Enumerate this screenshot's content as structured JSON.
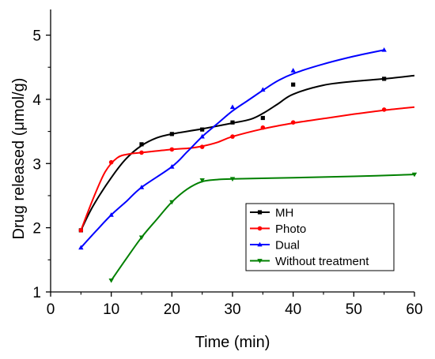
{
  "chart_data": {
    "type": "line",
    "title": "",
    "xlabel": "Time (min)",
    "ylabel": "Drug released (μmol/g)",
    "xlim": [
      0,
      60
    ],
    "ylim": [
      1,
      5.4
    ],
    "x_ticks": [
      0,
      10,
      20,
      30,
      40,
      50,
      60
    ],
    "y_ticks": [
      1,
      2,
      3,
      4,
      5
    ],
    "grid": false,
    "legend_position": "lower-right",
    "series": [
      {
        "name": "MH",
        "color": "#000000",
        "marker": "square",
        "points": [
          [
            5,
            1.96
          ],
          [
            15,
            3.3
          ],
          [
            20,
            3.46
          ],
          [
            25,
            3.53
          ],
          [
            30,
            3.64
          ],
          [
            35,
            3.71
          ],
          [
            40,
            4.23
          ],
          [
            55,
            4.32
          ]
        ],
        "fit": [
          [
            5,
            1.96
          ],
          [
            7,
            2.34
          ],
          [
            10,
            2.78
          ],
          [
            12.5,
            3.08
          ],
          [
            15,
            3.28
          ],
          [
            17.5,
            3.4
          ],
          [
            20,
            3.46
          ],
          [
            25,
            3.54
          ],
          [
            30,
            3.63
          ],
          [
            33,
            3.69
          ],
          [
            35,
            3.78
          ],
          [
            37.5,
            3.93
          ],
          [
            40,
            4.08
          ],
          [
            45,
            4.22
          ],
          [
            50,
            4.28
          ],
          [
            55,
            4.32
          ],
          [
            60,
            4.37
          ]
        ]
      },
      {
        "name": "Photo",
        "color": "#ff0000",
        "marker": "circle",
        "points": [
          [
            5,
            1.96
          ],
          [
            10,
            3.02
          ],
          [
            15,
            3.17
          ],
          [
            20,
            3.22
          ],
          [
            25,
            3.26
          ],
          [
            30,
            3.42
          ],
          [
            35,
            3.56
          ],
          [
            40,
            3.64
          ],
          [
            55,
            3.84
          ]
        ],
        "fit": [
          [
            5,
            1.96
          ],
          [
            7,
            2.45
          ],
          [
            9,
            2.87
          ],
          [
            11,
            3.09
          ],
          [
            13,
            3.15
          ],
          [
            15,
            3.17
          ],
          [
            20,
            3.22
          ],
          [
            23,
            3.24
          ],
          [
            25,
            3.27
          ],
          [
            27.5,
            3.33
          ],
          [
            30,
            3.42
          ],
          [
            35,
            3.54
          ],
          [
            40,
            3.63
          ],
          [
            45,
            3.7
          ],
          [
            50,
            3.77
          ],
          [
            55,
            3.83
          ],
          [
            60,
            3.88
          ]
        ]
      },
      {
        "name": "Dual",
        "color": "#0000ff",
        "marker": "triangle-up",
        "points": [
          [
            5,
            1.69
          ],
          [
            10,
            2.2
          ],
          [
            15,
            2.63
          ],
          [
            20,
            2.95
          ],
          [
            25,
            3.42
          ],
          [
            30,
            3.88
          ],
          [
            35,
            4.15
          ],
          [
            40,
            4.45
          ],
          [
            55,
            4.77
          ]
        ],
        "fit": [
          [
            5,
            1.69
          ],
          [
            7.5,
            1.95
          ],
          [
            10,
            2.2
          ],
          [
            12.5,
            2.41
          ],
          [
            15,
            2.63
          ],
          [
            20,
            2.95
          ],
          [
            22.5,
            3.18
          ],
          [
            25,
            3.42
          ],
          [
            27.5,
            3.62
          ],
          [
            30,
            3.82
          ],
          [
            32.5,
            3.98
          ],
          [
            35,
            4.14
          ],
          [
            37.5,
            4.29
          ],
          [
            40,
            4.4
          ],
          [
            45,
            4.55
          ],
          [
            50,
            4.67
          ],
          [
            55,
            4.77
          ]
        ]
      },
      {
        "name": "Without treatment",
        "color": "#008000",
        "marker": "triangle-down",
        "points": [
          [
            10,
            1.18
          ],
          [
            15,
            1.85
          ],
          [
            20,
            2.4
          ],
          [
            25,
            2.74
          ],
          [
            30,
            2.76
          ],
          [
            60,
            2.83
          ]
        ],
        "fit": [
          [
            10,
            1.18
          ],
          [
            12.5,
            1.52
          ],
          [
            15,
            1.85
          ],
          [
            17.5,
            2.13
          ],
          [
            20,
            2.4
          ],
          [
            22.5,
            2.6
          ],
          [
            25,
            2.72
          ],
          [
            27.5,
            2.75
          ],
          [
            30,
            2.76
          ],
          [
            40,
            2.78
          ],
          [
            50,
            2.8
          ],
          [
            60,
            2.83
          ]
        ]
      }
    ]
  }
}
